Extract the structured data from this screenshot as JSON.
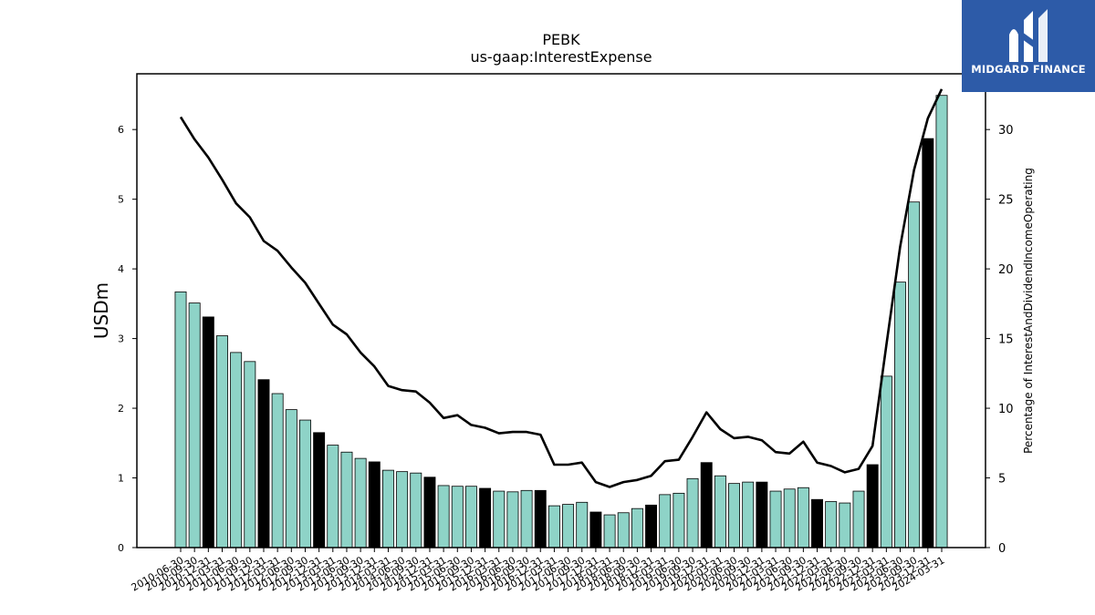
{
  "brand": {
    "name": "MIDGARD FINANCE",
    "color": "#2d5ba8"
  },
  "chart_data": {
    "type": "bar",
    "title": "PEBK",
    "subtitle": "us-gaap:InterestExpense",
    "ylabel": "USDm",
    "y2label": "Percentage of InterestAndDividendIncomeOperating",
    "ylim": [
      0,
      6.8
    ],
    "y2lim": [
      0,
      34
    ],
    "yticks": [
      0,
      1,
      2,
      3,
      4,
      5,
      6
    ],
    "y2ticks": [
      0,
      5,
      10,
      15,
      20,
      25,
      30
    ],
    "bar_color": "#8ed3c7",
    "highlight_color": "#000000",
    "line_color": "#000000",
    "categories": [
      "2010-06-30",
      "2010-09-30",
      "2010-12-31",
      "2011-03-31",
      "2011-06-30",
      "2011-09-30",
      "2011-12-31",
      "2012-03-31",
      "2012-06-30",
      "2012-09-30",
      "2012-12-31",
      "2013-03-31",
      "2013-06-30",
      "2013-09-30",
      "2013-12-31",
      "2014-03-31",
      "2014-06-30",
      "2014-09-30",
      "2014-12-31",
      "2015-03-31",
      "2015-06-30",
      "2015-09-30",
      "2015-12-31",
      "2016-03-31",
      "2016-06-30",
      "2016-09-30",
      "2016-12-31",
      "2017-03-31",
      "2017-06-30",
      "2017-09-30",
      "2017-12-31",
      "2018-03-31",
      "2018-06-30",
      "2018-09-30",
      "2018-12-31",
      "2019-03-31",
      "2019-06-30",
      "2019-09-30",
      "2019-12-31",
      "2020-03-31",
      "2020-06-30",
      "2020-09-30",
      "2020-12-31",
      "2021-03-31",
      "2021-06-30",
      "2021-09-30",
      "2021-12-31",
      "2022-03-31",
      "2022-06-30",
      "2022-09-30",
      "2022-12-31",
      "2023-03-31",
      "2023-06-30",
      "2023-09-30",
      "2023-12-31",
      "2024-03-31"
    ],
    "highlighted": [
      "2010-12-31",
      "2011-12-31",
      "2012-12-31",
      "2013-12-31",
      "2014-12-31",
      "2015-12-31",
      "2016-12-31",
      "2017-12-31",
      "2018-12-31",
      "2019-12-31",
      "2020-12-31",
      "2021-12-31",
      "2022-12-31",
      "2023-12-31"
    ],
    "series": [
      {
        "type": "bar",
        "axis": "left",
        "values": [
          3.67,
          3.51,
          3.31,
          3.04,
          2.8,
          2.67,
          2.41,
          2.21,
          1.98,
          1.83,
          1.65,
          1.47,
          1.37,
          1.28,
          1.23,
          1.11,
          1.09,
          1.07,
          1.01,
          0.89,
          0.88,
          0.88,
          0.85,
          0.81,
          0.8,
          0.82,
          0.82,
          0.6,
          0.62,
          0.65,
          0.51,
          0.47,
          0.5,
          0.56,
          0.61,
          0.76,
          0.78,
          0.99,
          1.22,
          1.03,
          0.92,
          0.94,
          0.94,
          0.81,
          0.84,
          0.86,
          0.69,
          0.66,
          0.64,
          0.81,
          1.19,
          2.46,
          3.81,
          4.96,
          5.87,
          6.49
        ]
      },
      {
        "type": "line",
        "axis": "right",
        "values": [
          30.9,
          29.3,
          28.0,
          26.4,
          24.7,
          23.7,
          22.0,
          21.3,
          20.1,
          19.0,
          17.5,
          16.0,
          15.3,
          14.0,
          13.0,
          11.6,
          11.3,
          11.2,
          10.4,
          9.3,
          9.5,
          8.8,
          8.6,
          8.2,
          8.3,
          8.3,
          8.1,
          5.95,
          5.95,
          6.1,
          4.7,
          4.35,
          4.7,
          4.85,
          5.15,
          6.2,
          6.3,
          7.95,
          9.7,
          8.5,
          7.85,
          7.95,
          7.7,
          6.85,
          6.75,
          7.6,
          6.1,
          5.85,
          5.4,
          5.65,
          7.3,
          14.5,
          21.6,
          27.1,
          30.8,
          32.9
        ]
      }
    ]
  }
}
